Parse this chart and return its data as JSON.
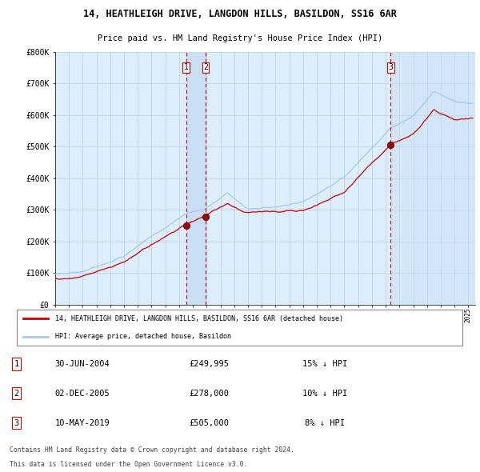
{
  "title1": "14, HEATHLEIGH DRIVE, LANGDON HILLS, BASILDON, SS16 6AR",
  "title2": "Price paid vs. HM Land Registry's House Price Index (HPI)",
  "ylim": [
    0,
    800000
  ],
  "yticks": [
    0,
    100000,
    200000,
    300000,
    400000,
    500000,
    600000,
    700000,
    800000
  ],
  "ytick_labels": [
    "£0",
    "£100K",
    "£200K",
    "£300K",
    "£400K",
    "£500K",
    "£600K",
    "£700K",
    "£800K"
  ],
  "hpi_color": "#a8c8e8",
  "price_color": "#cc0000",
  "bg_color": "#ddeeff",
  "grid_color": "#bbccdd",
  "vline_color": "#dd0000",
  "shade_color": "#c8dff5",
  "transactions": [
    {
      "label": "1",
      "date_num": 2004.5,
      "price": 249995
    },
    {
      "label": "2",
      "date_num": 2005.92,
      "price": 278000
    },
    {
      "label": "3",
      "date_num": 2019.36,
      "price": 505000
    }
  ],
  "shade_pair": [
    2004.5,
    2005.92
  ],
  "legend_items": [
    {
      "label": "14, HEATHLEIGH DRIVE, LANGDON HILLS, BASILDON, SS16 6AR (detached house)",
      "color": "#cc0000"
    },
    {
      "label": "HPI: Average price, detached house, Basildon",
      "color": "#a8c8e8"
    }
  ],
  "table_rows": [
    {
      "num": "1",
      "date": "30-JUN-2004",
      "price": "£249,995",
      "hpi": "15% ↓ HPI"
    },
    {
      "num": "2",
      "date": "02-DEC-2005",
      "price": "£278,000",
      "hpi": "10% ↓ HPI"
    },
    {
      "num": "3",
      "date": "10-MAY-2019",
      "price": "£505,000",
      "hpi": "8% ↓ HPI"
    }
  ],
  "footnote1": "Contains HM Land Registry data © Crown copyright and database right 2024.",
  "footnote2": "This data is licensed under the Open Government Licence v3.0.",
  "xlim": [
    1995,
    2025.5
  ],
  "xtick_start": 1995,
  "xtick_end": 2026
}
